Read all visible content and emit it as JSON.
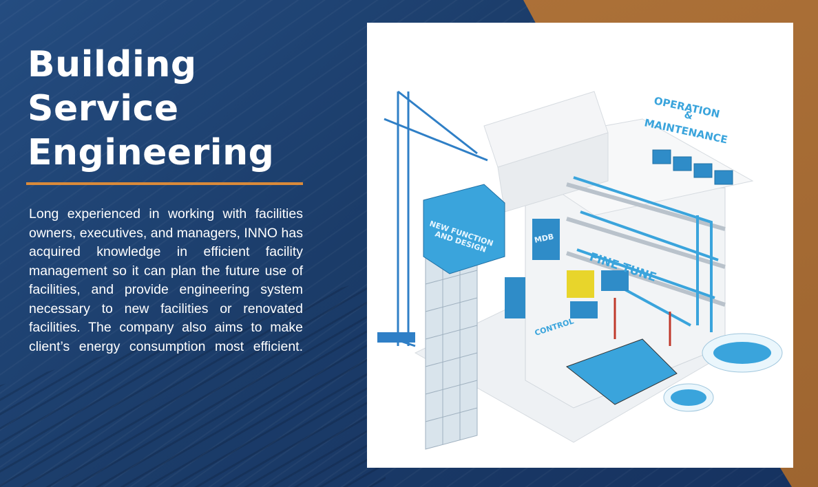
{
  "header": {
    "title_lines": [
      "Building",
      "Service",
      "Engineering"
    ]
  },
  "description": "Long experienced in working with facilities owners, executives, and managers, INNO has acquired knowledge in efficient facility management so it can plan the future use of facilities, and provide engineering system necessary to new facilities or renovated facilities. The company also aims to make client’s energy consumption most efficient.",
  "illustration": {
    "labels": {
      "operation": "OPERATION",
      "amp": "&",
      "maintenance": "MAINTENANCE",
      "new_function_1": "NEW FUNCTION",
      "new_function_2": "AND DESIGN",
      "mdb": "MDB",
      "fine_tune": "FINE TUNE",
      "control": "CONTROL"
    }
  },
  "colors": {
    "blue_bg": "#1c3f6e",
    "copper_bg": "#a86b34",
    "accent_rule": "#d98a3a",
    "illustration_blue": "#3aa4dc"
  }
}
